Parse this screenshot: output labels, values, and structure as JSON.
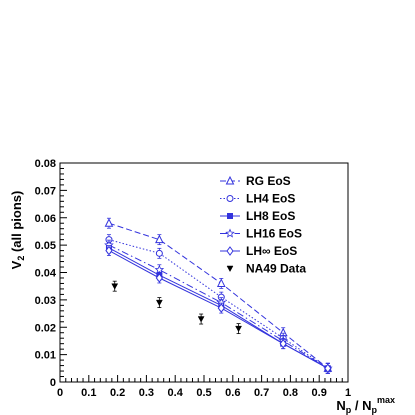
{
  "chart_data": {
    "type": "line",
    "xlabel": {
      "base": "N",
      "base_sub": "p",
      "sep": " / ",
      "base2": "N",
      "base2_sub": "p",
      "base2_sup": "max"
    },
    "ylabel": {
      "base": "V",
      "sub": "2",
      "rest": " (all pions)"
    },
    "xlim": [
      0,
      1
    ],
    "ylim": [
      0,
      0.08
    ],
    "xticks": [
      "0",
      "0.1",
      "0.2",
      "0.3",
      "0.4",
      "0.5",
      "0.6",
      "0.7",
      "0.8",
      "0.9",
      "1"
    ],
    "yticks": [
      "0",
      "0.01",
      "0.02",
      "0.03",
      "0.04",
      "0.05",
      "0.06",
      "0.07",
      "0.08"
    ],
    "grid": false,
    "legend_position": "top-right",
    "color": "#3333dd",
    "series": [
      {
        "name": "RG EoS",
        "style": "dashed",
        "marker": "triangle-open",
        "x": [
          0.17,
          0.345,
          0.56,
          0.775,
          0.93
        ],
        "y": [
          0.058,
          0.052,
          0.036,
          0.018,
          0.005
        ]
      },
      {
        "name": "LH4 EoS",
        "style": "dotted",
        "marker": "circle-open",
        "x": [
          0.17,
          0.345,
          0.56,
          0.775,
          0.93
        ],
        "y": [
          0.052,
          0.047,
          0.031,
          0.016,
          0.005
        ]
      },
      {
        "name": "LH8 EoS",
        "style": "solid",
        "marker": "square-filled",
        "x": [
          0.17,
          0.345,
          0.56,
          0.775,
          0.93
        ],
        "y": [
          0.049,
          0.039,
          0.028,
          0.014,
          0.005
        ]
      },
      {
        "name": "LH16 EoS",
        "style": "dashdot",
        "marker": "star-open",
        "x": [
          0.17,
          0.345,
          0.56,
          0.775,
          0.93
        ],
        "y": [
          0.05,
          0.041,
          0.029,
          0.015,
          0.005
        ]
      },
      {
        "name": "LH∞ EoS",
        "style": "solid",
        "marker": "diamond-open",
        "x": [
          0.17,
          0.345,
          0.56,
          0.775,
          0.93
        ],
        "y": [
          0.048,
          0.038,
          0.027,
          0.014,
          0.005
        ]
      },
      {
        "name": "NA49 Data",
        "style": "none",
        "marker": "triangle-down-filled",
        "color": "#000000",
        "x": [
          0.19,
          0.345,
          0.49,
          0.62
        ],
        "y": [
          0.035,
          0.029,
          0.023,
          0.0195
        ]
      }
    ]
  }
}
